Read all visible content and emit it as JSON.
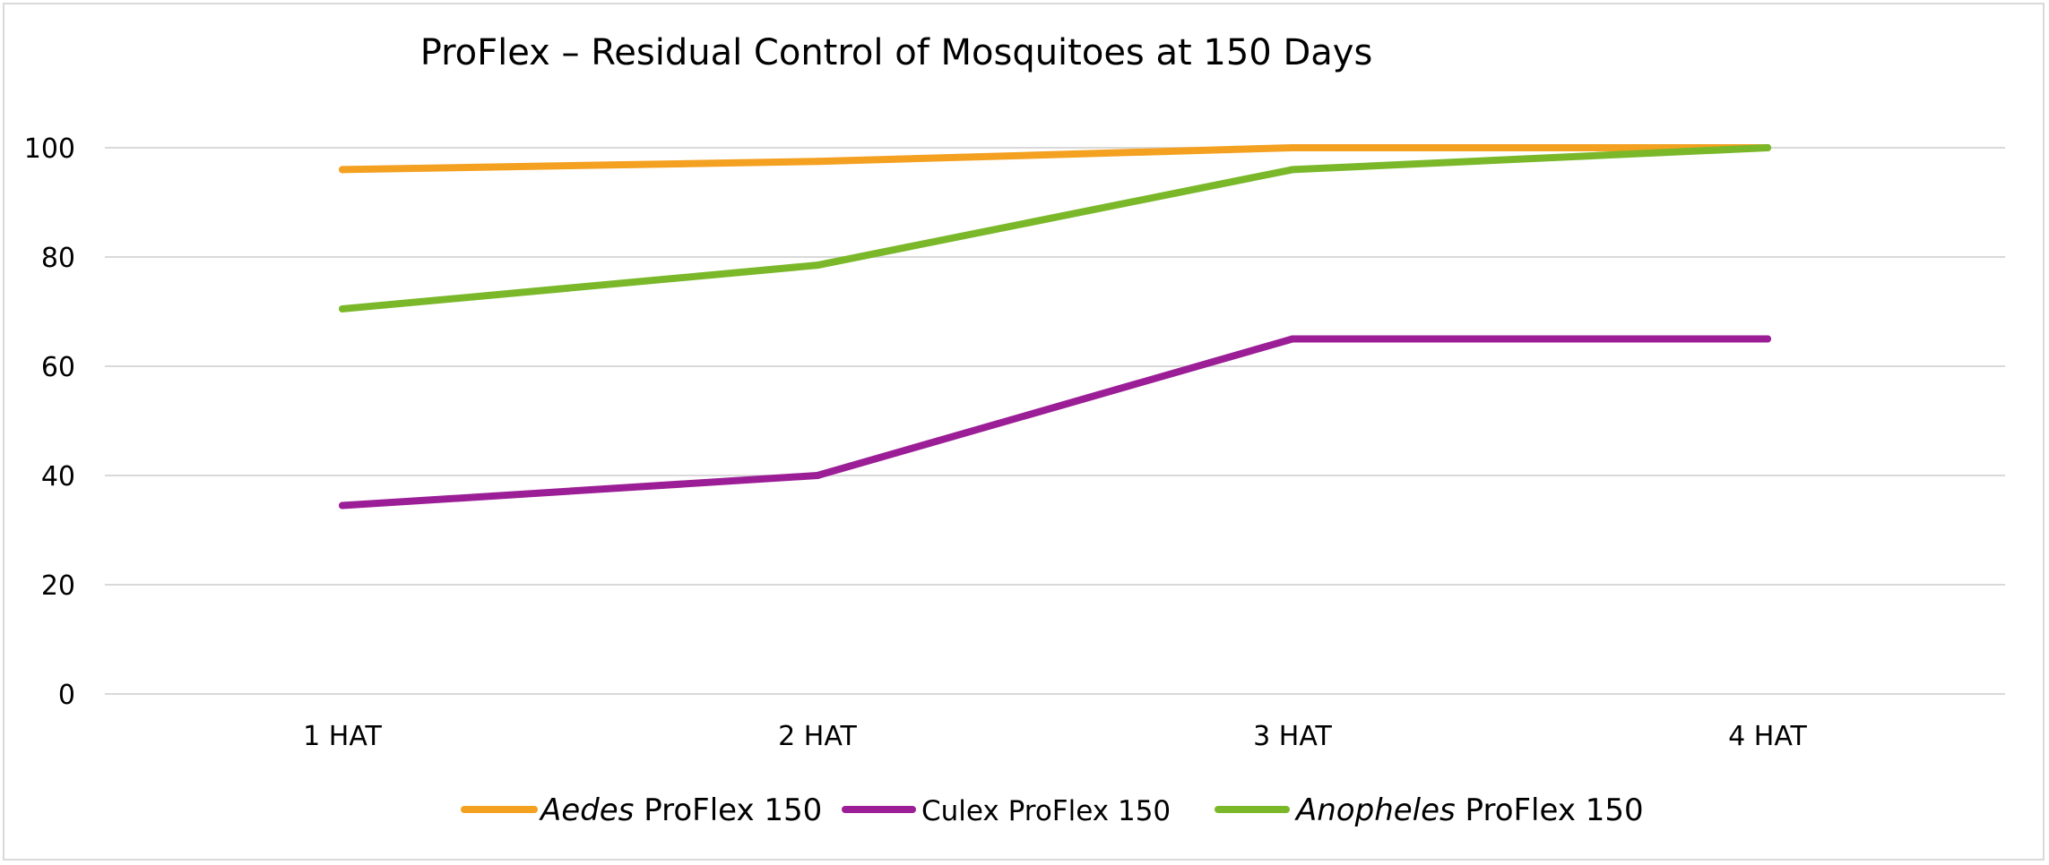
{
  "chart_data": {
    "type": "line",
    "title": "ProFlex – Residual Control of Mosquitoes at 150 Days",
    "xlabel": "",
    "ylabel": "",
    "categories": [
      "1 HAT",
      "2 HAT",
      "3 HAT",
      "4 HAT"
    ],
    "ylim": [
      0,
      100
    ],
    "yticks": [
      0,
      20,
      40,
      60,
      80,
      100
    ],
    "grid": true,
    "legend_position": "bottom",
    "series": [
      {
        "name": "Aedes ProFlex 150",
        "name_italic": "Aedes",
        "name_rest": " ProFlex 150",
        "color": "#F4A020",
        "values": [
          96,
          97.5,
          100,
          100
        ]
      },
      {
        "name": "Culex ProFlex 150",
        "name_italic": "",
        "name_rest": "Culex ProFlex 150",
        "color": "#9B1E96",
        "values": [
          34.5,
          40,
          65,
          65
        ]
      },
      {
        "name": "Anopheles ProFlex 150",
        "name_italic": "Anopheles",
        "name_rest": " ProFlex 150",
        "color": "#7AB82A",
        "values": [
          70.5,
          78.5,
          96,
          100
        ]
      }
    ]
  }
}
